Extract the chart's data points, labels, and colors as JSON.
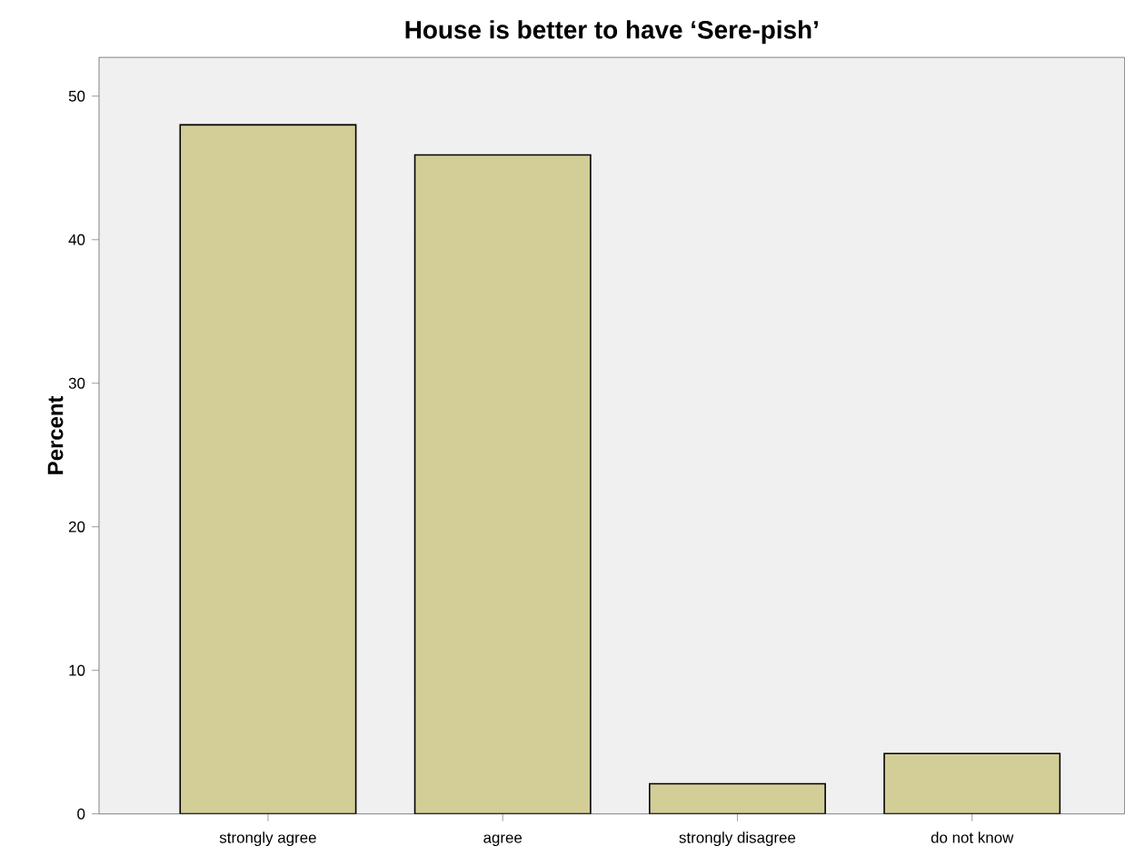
{
  "chart_data": {
    "type": "bar",
    "title": "House is better to have ‘Sere-pish’",
    "ylabel": "Percent",
    "categories": [
      "strongly agree",
      "agree",
      "strongly disagree",
      "do not know"
    ],
    "values": [
      48.0,
      45.9,
      2.1,
      4.2
    ],
    "color": "#d3ce97",
    "ylim": [
      0,
      52.7
    ],
    "yticks": [
      0,
      10,
      20,
      30,
      40,
      50
    ]
  }
}
